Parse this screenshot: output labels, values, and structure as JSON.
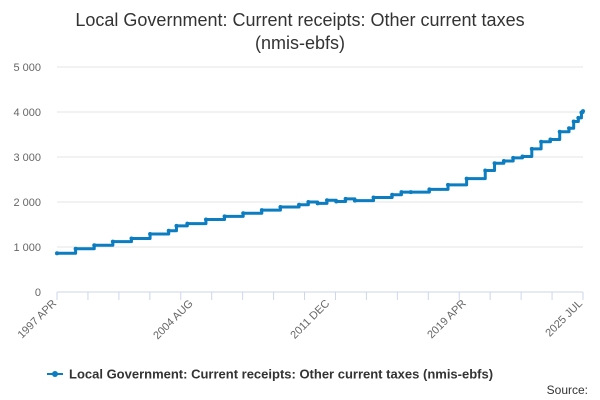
{
  "chart_data": {
    "type": "line",
    "title": "Local Government: Current receipts: Other current taxes (nmis-ebfs)",
    "title_lines": [
      "Local Government: Current receipts: Other current taxes",
      "(nmis-ebfs)"
    ],
    "xlabel": "",
    "ylabel": "",
    "ylim": [
      0,
      5000
    ],
    "y_ticks": [
      0,
      1000,
      2000,
      3000,
      4000,
      5000
    ],
    "y_tick_labels": [
      "0",
      "1 000",
      "2 000",
      "3 000",
      "4 000",
      "5 000"
    ],
    "x_range": [
      "1997-04",
      "2025-07"
    ],
    "x_tick_labels": [
      {
        "date": "1997-04",
        "label": "1997 APR"
      },
      {
        "date": "2004-08",
        "label": "2004 AUG"
      },
      {
        "date": "2011-12",
        "label": "2011 DEC"
      },
      {
        "date": "2019-04",
        "label": "2019 APR"
      },
      {
        "date": "2025-07",
        "label": "2025 JUL"
      }
    ],
    "grid": "horizontal",
    "legend_position": "bottom",
    "series": [
      {
        "name": "Local Government: Current receipts: Other current taxes (nmis-ebfs)",
        "color": "#0b7dc0",
        "points": [
          [
            "1997-04",
            860
          ],
          [
            "1998-04",
            960
          ],
          [
            "1999-04",
            1040
          ],
          [
            "2000-04",
            1120
          ],
          [
            "2001-04",
            1190
          ],
          [
            "2002-04",
            1290
          ],
          [
            "2003-04",
            1360
          ],
          [
            "2003-09",
            1470
          ],
          [
            "2004-04",
            1520
          ],
          [
            "2005-04",
            1610
          ],
          [
            "2006-04",
            1680
          ],
          [
            "2007-04",
            1750
          ],
          [
            "2008-04",
            1820
          ],
          [
            "2009-04",
            1890
          ],
          [
            "2010-04",
            1940
          ],
          [
            "2010-10",
            2000
          ],
          [
            "2011-04",
            1970
          ],
          [
            "2011-10",
            2040
          ],
          [
            "2012-04",
            2010
          ],
          [
            "2012-10",
            2070
          ],
          [
            "2013-04",
            2030
          ],
          [
            "2014-04",
            2100
          ],
          [
            "2015-04",
            2160
          ],
          [
            "2015-10",
            2220
          ],
          [
            "2016-04",
            2220
          ],
          [
            "2017-04",
            2280
          ],
          [
            "2018-04",
            2380
          ],
          [
            "2019-04",
            2520
          ],
          [
            "2020-04",
            2700
          ],
          [
            "2020-10",
            2860
          ],
          [
            "2021-04",
            2910
          ],
          [
            "2021-10",
            2980
          ],
          [
            "2022-04",
            3010
          ],
          [
            "2022-10",
            3180
          ],
          [
            "2023-04",
            3340
          ],
          [
            "2023-10",
            3390
          ],
          [
            "2024-04",
            3560
          ],
          [
            "2024-10",
            3640
          ],
          [
            "2025-01",
            3790
          ],
          [
            "2025-04",
            3870
          ],
          [
            "2025-06",
            3990
          ],
          [
            "2025-07",
            4020
          ]
        ]
      }
    ],
    "credit": "Source:"
  }
}
